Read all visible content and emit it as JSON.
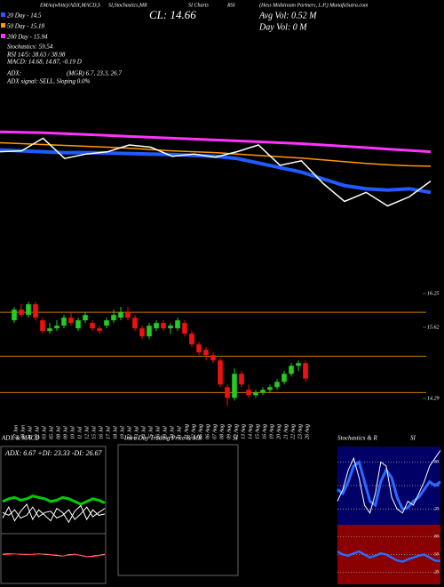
{
  "info": {
    "header": [
      "EMAs(white)/ADX,MACD,S",
      "SI,Stochastics,MR",
      "SI Charts",
      "RSI",
      "(Hess Midstream Partners, L.P.) MunafaSutra.com"
    ],
    "close": "CL: 14.66",
    "avg_vol": "Avg Vol: 0.52 M",
    "day_vol": "Day Vol: 0  M",
    "lines": [
      "20 Day - 14.5",
      "50 Day - 15.18",
      "200 Day - 15.94",
      "Stochastics: 59.54",
      "RSI 14/5: 38.63 / 38.98",
      "MACD: 14.68, 14.87, -0.19 D",
      "ADX:",
      "ADX  signal: SELL, Sloping 0.0%"
    ],
    "adx_values": "(MGR) 6.7, 23.3, 26.7"
  },
  "chart_data": [
    {
      "type": "line",
      "ylim": [
        13.8,
        16.4
      ],
      "series": [
        {
          "color": "#ff33ff",
          "width": 3,
          "values": [
            16.04,
            16.03,
            16.02,
            16.0,
            15.98,
            15.96,
            15.94,
            15.92,
            15.9,
            15.88,
            15.86,
            15.84,
            15.82,
            15.8,
            15.78,
            15.75,
            15.72,
            15.69,
            15.66,
            15.63,
            15.6
          ]
        },
        {
          "color": "#ff9900",
          "width": 1.5,
          "values": [
            15.8,
            15.78,
            15.76,
            15.74,
            15.72,
            15.7,
            15.68,
            15.65,
            15.62,
            15.6,
            15.58,
            15.55,
            15.52,
            15.49,
            15.46,
            15.42,
            15.38,
            15.34,
            15.31,
            15.29,
            15.28
          ]
        },
        {
          "color": "#1f5bff",
          "width": 4,
          "values": [
            15.64,
            15.62,
            15.6,
            15.58,
            15.58,
            15.57,
            15.56,
            15.55,
            15.54,
            15.52,
            15.5,
            15.45,
            15.35,
            15.25,
            15.15,
            15.0,
            14.85,
            14.78,
            14.75,
            14.78,
            14.7
          ]
        },
        {
          "color": "#ffffff",
          "width": 1.5,
          "values": [
            15.6,
            15.62,
            15.9,
            15.45,
            15.55,
            15.6,
            15.75,
            15.7,
            15.5,
            15.55,
            15.48,
            15.6,
            15.75,
            15.3,
            15.4,
            14.9,
            14.5,
            14.7,
            14.4,
            14.6,
            14.95
          ]
        }
      ]
    },
    {
      "type": "candlestick",
      "ylim": [
        14.09,
        16.75
      ],
      "yticks": [
        16.25,
        15.62,
        14.29
      ],
      "levels": [
        15.9,
        15.08,
        14.4
      ],
      "level_color": "#cc7a00",
      "up_color": "#22cc22",
      "down_color": "#ee1111",
      "categories": [
        "27 Jun",
        "28 Jun",
        "01 Jul",
        "02 Jul",
        "03 Jul",
        "05 Jul",
        "08 Jul",
        "09 Jul",
        "10 Jul",
        "11 Jul",
        "12 Jul",
        "15 Jul",
        "16 Jul",
        "17 Jul",
        "18 Jul",
        "19 Jul",
        "22 Jul",
        "23 Jul",
        "24 Jul",
        "25 Jul",
        "26 Jul",
        "29 Jul",
        "30 Jul",
        "31 Jul",
        "01 Aug",
        "02 Aug",
        "05 Aug",
        "06 Aug",
        "07 Aug",
        "08 Aug",
        "09 Aug",
        "12 Aug",
        "13 Aug",
        "14 Aug",
        "15 Aug",
        "16 Aug",
        "19 Aug",
        "20 Aug",
        "21 Aug",
        "22 Aug",
        "23 Aug",
        "26 Aug"
      ],
      "open": [
        15.75,
        15.95,
        15.85,
        16.05,
        15.75,
        15.55,
        15.6,
        15.65,
        15.8,
        15.6,
        15.75,
        15.7,
        15.6,
        15.65,
        15.75,
        15.8,
        15.9,
        15.8,
        15.6,
        15.45,
        15.6,
        15.7,
        15.6,
        15.6,
        15.7,
        15.5,
        15.3,
        15.2,
        15.1,
        15.0,
        14.5,
        14.3,
        14.75,
        14.45,
        14.35,
        14.4,
        14.45,
        14.5,
        14.6,
        14.75,
        14.9,
        14.95
      ],
      "high": [
        16.0,
        16.05,
        16.1,
        16.1,
        15.8,
        15.7,
        15.75,
        15.85,
        15.9,
        15.8,
        15.9,
        15.75,
        15.65,
        15.8,
        15.95,
        16.0,
        16.0,
        15.85,
        15.65,
        15.7,
        15.75,
        15.75,
        15.7,
        15.8,
        15.75,
        15.55,
        15.35,
        15.25,
        15.15,
        15.05,
        14.55,
        14.85,
        14.8,
        14.55,
        14.45,
        14.5,
        14.55,
        14.65,
        14.8,
        14.95,
        15.0,
        15.0
      ],
      "low": [
        15.7,
        15.8,
        15.8,
        15.75,
        15.5,
        15.5,
        15.55,
        15.6,
        15.65,
        15.55,
        15.7,
        15.55,
        15.5,
        15.6,
        15.7,
        15.75,
        15.75,
        15.55,
        15.4,
        15.4,
        15.55,
        15.55,
        15.5,
        15.55,
        15.45,
        15.25,
        15.1,
        15.0,
        14.95,
        14.5,
        14.15,
        14.25,
        14.5,
        14.3,
        14.3,
        14.35,
        14.4,
        14.45,
        14.55,
        14.7,
        14.8,
        14.6
      ],
      "close": [
        15.95,
        15.85,
        16.05,
        15.8,
        15.55,
        15.6,
        15.65,
        15.8,
        15.7,
        15.75,
        15.85,
        15.6,
        15.55,
        15.75,
        15.85,
        15.9,
        15.8,
        15.6,
        15.45,
        15.65,
        15.7,
        15.6,
        15.65,
        15.75,
        15.5,
        15.3,
        15.15,
        15.1,
        15.0,
        14.55,
        14.3,
        14.75,
        14.55,
        14.35,
        14.4,
        14.45,
        14.5,
        14.6,
        14.75,
        14.9,
        14.95,
        14.66
      ]
    },
    {
      "type": "line",
      "title_parts": [
        "ADX  & MACD"
      ],
      "annotation": "ADX: 6.67  +DI: 23.33  -DI: 26.67",
      "ylim": [
        0,
        60
      ],
      "series": [
        {
          "color": "#00cc00",
          "width": 3,
          "values": [
            22,
            24,
            25,
            23,
            24,
            26,
            25,
            24,
            22,
            23,
            25,
            24,
            22,
            20,
            22,
            24,
            23,
            21
          ]
        },
        {
          "color": "#ffffff",
          "width": 1,
          "values": [
            14,
            12,
            16,
            10,
            12,
            18,
            11,
            14,
            15,
            10,
            12,
            16,
            9,
            13,
            18,
            11,
            14,
            17
          ]
        },
        {
          "color": "#ffffff",
          "width": 1,
          "values": [
            10,
            18,
            8,
            15,
            20,
            9,
            16,
            12,
            8,
            17,
            14,
            7,
            15,
            19,
            9,
            16,
            12,
            13
          ]
        }
      ]
    },
    {
      "type": "line",
      "ylim": [
        -1,
        1
      ],
      "series": [
        {
          "color": "#ffffff",
          "width": 1,
          "values": [
            0.2,
            0.22,
            0.21,
            0.2,
            0.19,
            0.2,
            0.22,
            0.2,
            0.18,
            0.15,
            0.12,
            0.18,
            0.2,
            0.15,
            0.1,
            0.12,
            0.15,
            0.2
          ]
        },
        {
          "color": "#ff3333",
          "width": 1,
          "values": [
            0.18,
            0.2,
            0.21,
            0.2,
            0.2,
            0.19,
            0.21,
            0.21,
            0.19,
            0.17,
            0.13,
            0.16,
            0.19,
            0.16,
            0.11,
            0.1,
            0.14,
            0.18
          ]
        }
      ]
    },
    {
      "type": "line",
      "title_parts": [
        "Intra Day Trading Price & MR",
        "SI"
      ],
      "series": []
    },
    {
      "type": "line",
      "title_parts": [
        "Stochastics & R",
        "SI"
      ],
      "ylim": [
        0,
        100
      ],
      "yticks": [
        20,
        50,
        80
      ],
      "background": "#000066",
      "series": [
        {
          "color": "#2a6bff",
          "width": 3,
          "values": [
            45,
            40,
            55,
            75,
            80,
            55,
            30,
            25,
            55,
            70,
            60,
            35,
            20,
            22,
            30,
            35,
            45,
            55,
            50,
            55
          ]
        },
        {
          "color": "#ffffff",
          "width": 1,
          "values": [
            30,
            45,
            70,
            85,
            60,
            25,
            15,
            40,
            80,
            75,
            35,
            20,
            15,
            30,
            25,
            40,
            55,
            75,
            85,
            95
          ]
        }
      ]
    },
    {
      "type": "line",
      "ylim": [
        0,
        100
      ],
      "yticks": [
        20,
        50,
        80
      ],
      "background": "#8b0000",
      "series": [
        {
          "color": "#2a6bff",
          "width": 2.5,
          "values": [
            55,
            50,
            48,
            52,
            55,
            50,
            45,
            48,
            52,
            50,
            45,
            40,
            38,
            42,
            45,
            48,
            50,
            45,
            40,
            39
          ]
        }
      ]
    }
  ]
}
